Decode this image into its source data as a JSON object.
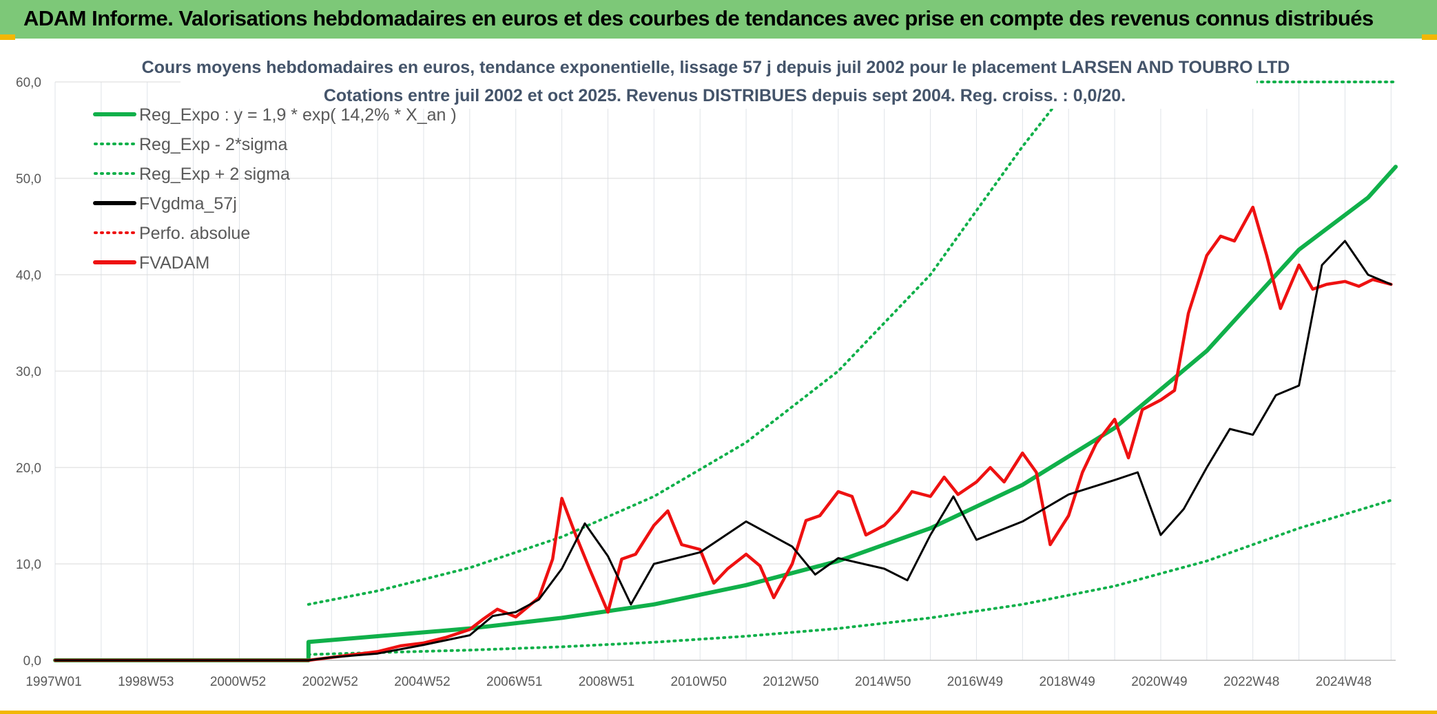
{
  "header": {
    "title": "ADAM Informe. Valorisations hebdomadaires en euros et des courbes de tendances avec prise en compte des revenus connus distribués"
  },
  "colors": {
    "banner": "#7dc878",
    "accent": "#f2b705",
    "trend_green": "#10b04a",
    "fvadam_red": "#ee1111",
    "fvgdma_black": "#000000"
  },
  "chart_data": {
    "type": "line",
    "title": "Cours moyens hebdomadaires en euros, tendance exponentielle, lissage 57 j depuis juil 2002 pour le placement LARSEN AND TOUBRO LTD",
    "subtitle": "Cotations entre juil 2002 et oct 2025. Revenus DISTRIBUES depuis sept 2004. Reg. croiss. : 0,0/20.",
    "xlabel": "",
    "ylabel": "",
    "ylim": [
      0,
      60
    ],
    "xlim": [
      1997.0,
      2026.1
    ],
    "yticks": [
      "0,0",
      "10,0",
      "20,0",
      "30,0",
      "40,0",
      "50,0",
      "60,0"
    ],
    "xticks": [
      {
        "label": "1997W01",
        "x": 1997.0
      },
      {
        "label": "1998W53",
        "x": 1999.0
      },
      {
        "label": "2000W52",
        "x": 2001.0
      },
      {
        "label": "2002W52",
        "x": 2003.0
      },
      {
        "label": "2004W52",
        "x": 2005.0
      },
      {
        "label": "2006W51",
        "x": 2007.0
      },
      {
        "label": "2008W51",
        "x": 2009.0
      },
      {
        "label": "2010W50",
        "x": 2011.0
      },
      {
        "label": "2012W50",
        "x": 2013.0
      },
      {
        "label": "2014W50",
        "x": 2015.0
      },
      {
        "label": "2016W49",
        "x": 2017.0
      },
      {
        "label": "2018W49",
        "x": 2019.0
      },
      {
        "label": "2020W49",
        "x": 2021.0
      },
      {
        "label": "2022W48",
        "x": 2023.0
      },
      {
        "label": "2024W48",
        "x": 2025.0
      }
    ],
    "grid": true,
    "legend_position": "top-left",
    "series": [
      {
        "name": "Reg_Expo : y = 1,9 * exp( 14,2% *  X_an )",
        "style": "solid",
        "color": "#10b04a",
        "x": [
          1997.0,
          2002.5,
          2002.5,
          2004.0,
          2006.0,
          2008.0,
          2010.0,
          2012.0,
          2014.0,
          2016.0,
          2018.0,
          2020.0,
          2022.0,
          2024.0,
          2025.5,
          2026.1
        ],
        "y": [
          0,
          0,
          1.9,
          2.5,
          3.3,
          4.4,
          5.8,
          7.8,
          10.3,
          13.7,
          18.2,
          24.1,
          32.1,
          42.6,
          48.0,
          51.2
        ]
      },
      {
        "name": "Reg_Exp - 2*sigma",
        "style": "dotted",
        "color": "#10b04a",
        "x": [
          2002.5,
          2004.0,
          2006.0,
          2008.0,
          2010.0,
          2012.0,
          2014.0,
          2016.0,
          2018.0,
          2020.0,
          2022.0,
          2024.0,
          2026.0
        ],
        "y": [
          0.6,
          0.8,
          1.06,
          1.4,
          1.87,
          2.5,
          3.3,
          4.4,
          5.8,
          7.7,
          10.3,
          13.7,
          16.6
        ]
      },
      {
        "name": "Reg_Exp + 2 sigma",
        "style": "dotted",
        "color": "#10b04a",
        "x": [
          2002.5,
          2004.0,
          2006.0,
          2008.0,
          2010.0,
          2012.0,
          2014.0,
          2016.0,
          2018.0,
          2019.1
        ],
        "y": [
          5.8,
          7.2,
          9.6,
          12.8,
          17.0,
          22.6,
          30.0,
          40.0,
          53.3,
          60.0
        ]
      },
      {
        "name": "FVgdma_57j",
        "style": "solid",
        "color": "#000000",
        "x": [
          1997.0,
          2002.5,
          2003.0,
          2004.0,
          2005.0,
          2006.0,
          2006.5,
          2007.0,
          2007.5,
          2008.0,
          2008.5,
          2009.0,
          2009.5,
          2010.0,
          2011.0,
          2012.0,
          2013.0,
          2013.5,
          2014.0,
          2015.0,
          2015.5,
          2016.0,
          2016.5,
          2017.0,
          2018.0,
          2019.0,
          2020.0,
          2020.5,
          2021.0,
          2021.5,
          2022.0,
          2022.5,
          2023.0,
          2023.5,
          2024.0,
          2024.5,
          2025.0,
          2025.5,
          2026.0
        ],
        "y": [
          0,
          0,
          0.3,
          0.7,
          1.6,
          2.6,
          4.6,
          5.0,
          6.3,
          9.5,
          14.2,
          10.8,
          5.8,
          10.0,
          11.2,
          14.4,
          11.8,
          8.9,
          10.6,
          9.5,
          8.3,
          13.0,
          17.0,
          12.5,
          14.4,
          17.2,
          18.7,
          19.5,
          13.0,
          15.7,
          20.0,
          24.0,
          23.4,
          27.5,
          28.5,
          41.0,
          43.5,
          40.0,
          39.0
        ]
      },
      {
        "name": "Perfo. absolue",
        "style": "dotted",
        "color": "#ee1111",
        "x": [],
        "y": []
      },
      {
        "name": "FVADAM",
        "style": "solid",
        "color": "#ee1111",
        "x": [
          1997.0,
          2002.5,
          2003.0,
          2003.5,
          2004.0,
          2004.5,
          2005.0,
          2005.5,
          2006.0,
          2006.3,
          2006.6,
          2007.0,
          2007.5,
          2007.8,
          2008.0,
          2008.3,
          2008.6,
          2009.0,
          2009.3,
          2009.6,
          2010.0,
          2010.3,
          2010.6,
          2011.0,
          2011.3,
          2011.6,
          2012.0,
          2012.3,
          2012.6,
          2013.0,
          2013.3,
          2013.6,
          2014.0,
          2014.3,
          2014.6,
          2015.0,
          2015.3,
          2015.6,
          2016.0,
          2016.3,
          2016.6,
          2017.0,
          2017.3,
          2017.6,
          2018.0,
          2018.3,
          2018.6,
          2019.0,
          2019.3,
          2019.6,
          2020.0,
          2020.3,
          2020.6,
          2021.0,
          2021.3,
          2021.6,
          2022.0,
          2022.3,
          2022.6,
          2023.0,
          2023.3,
          2023.6,
          2024.0,
          2024.3,
          2024.6,
          2025.0,
          2025.3,
          2025.6,
          2026.0
        ],
        "y": [
          0,
          0,
          0.3,
          0.6,
          0.9,
          1.5,
          1.8,
          2.4,
          3.2,
          4.3,
          5.3,
          4.5,
          6.5,
          10.5,
          16.8,
          13.0,
          9.5,
          5.0,
          10.5,
          11.0,
          14.0,
          15.5,
          12.0,
          11.5,
          8.0,
          9.5,
          11.0,
          9.8,
          6.5,
          10.0,
          14.5,
          15.0,
          17.5,
          17.0,
          13.0,
          14.0,
          15.5,
          17.5,
          17.0,
          19.0,
          17.2,
          18.5,
          20.0,
          18.5,
          21.5,
          19.5,
          12.0,
          15.0,
          19.5,
          22.5,
          25.0,
          21.0,
          26.0,
          27.0,
          28.0,
          36.0,
          42.0,
          44.0,
          43.5,
          47.0,
          42.0,
          36.5,
          41.0,
          38.5,
          39.0,
          39.3,
          38.8,
          39.5,
          39.0
        ]
      }
    ]
  }
}
